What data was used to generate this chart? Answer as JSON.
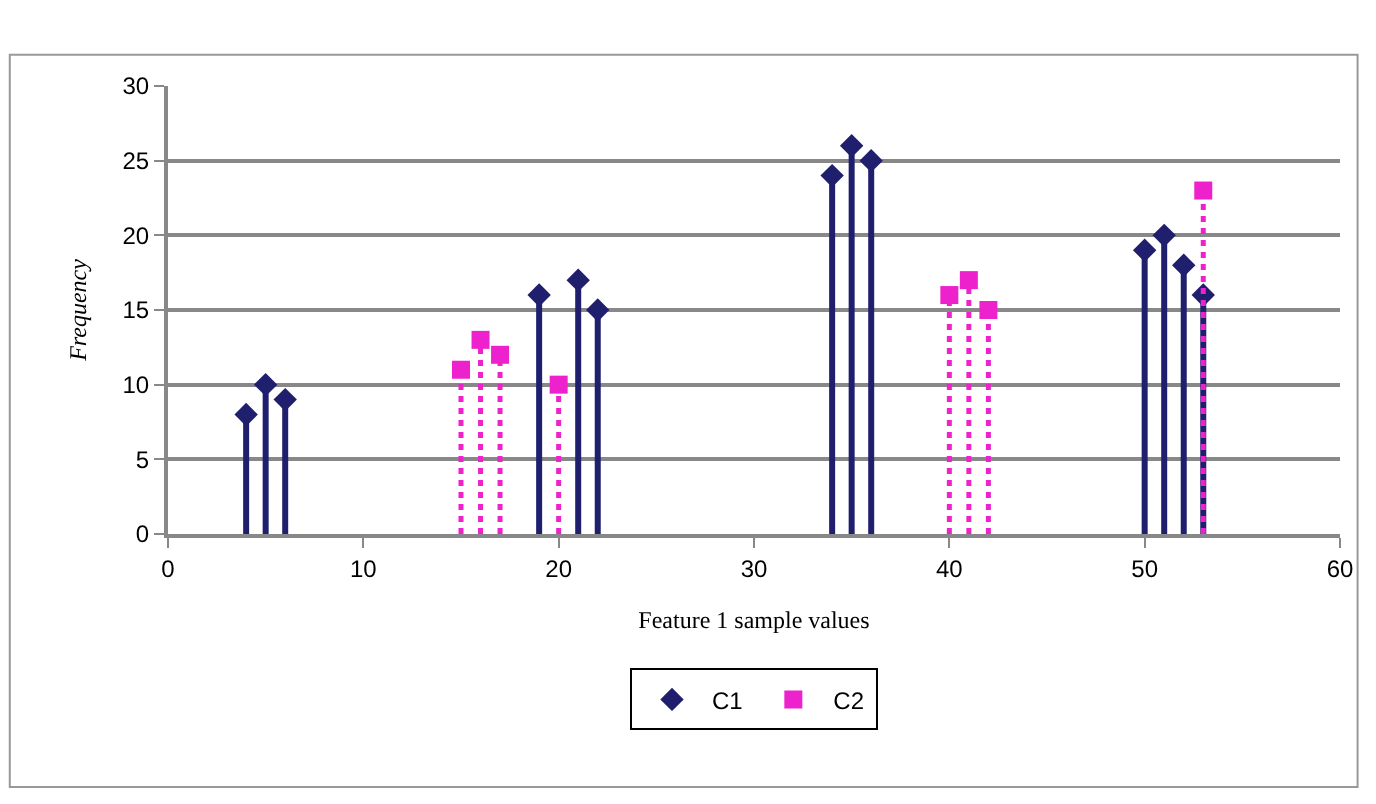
{
  "chart_data": {
    "type": "lollipop",
    "xlabel": "Feature 1 sample values",
    "ylabel": "Frequency",
    "xlim": [
      0,
      60
    ],
    "xticks": [
      0,
      10,
      20,
      30,
      40,
      50,
      60
    ],
    "ylim": [
      0,
      30
    ],
    "yticks": [
      0,
      5,
      10,
      15,
      20,
      25,
      30
    ],
    "grid": "y",
    "legend": "bottom",
    "series": [
      {
        "name": "C1",
        "color": "#1f1f6e",
        "marker": "diamond",
        "line_style": "solid",
        "x": [
          4,
          5,
          6,
          19,
          21,
          22,
          34,
          35,
          36,
          50,
          51,
          52,
          53
        ],
        "values": [
          8,
          10,
          9,
          16,
          17,
          15,
          24,
          26,
          25,
          19,
          20,
          18,
          16
        ]
      },
      {
        "name": "C2",
        "color": "#ee22cc",
        "marker": "square",
        "line_style": "dotted",
        "x": [
          15,
          16,
          17,
          20,
          40,
          41,
          42,
          53
        ],
        "values": [
          11,
          13,
          12,
          10,
          16,
          17,
          15,
          23
        ]
      }
    ]
  }
}
